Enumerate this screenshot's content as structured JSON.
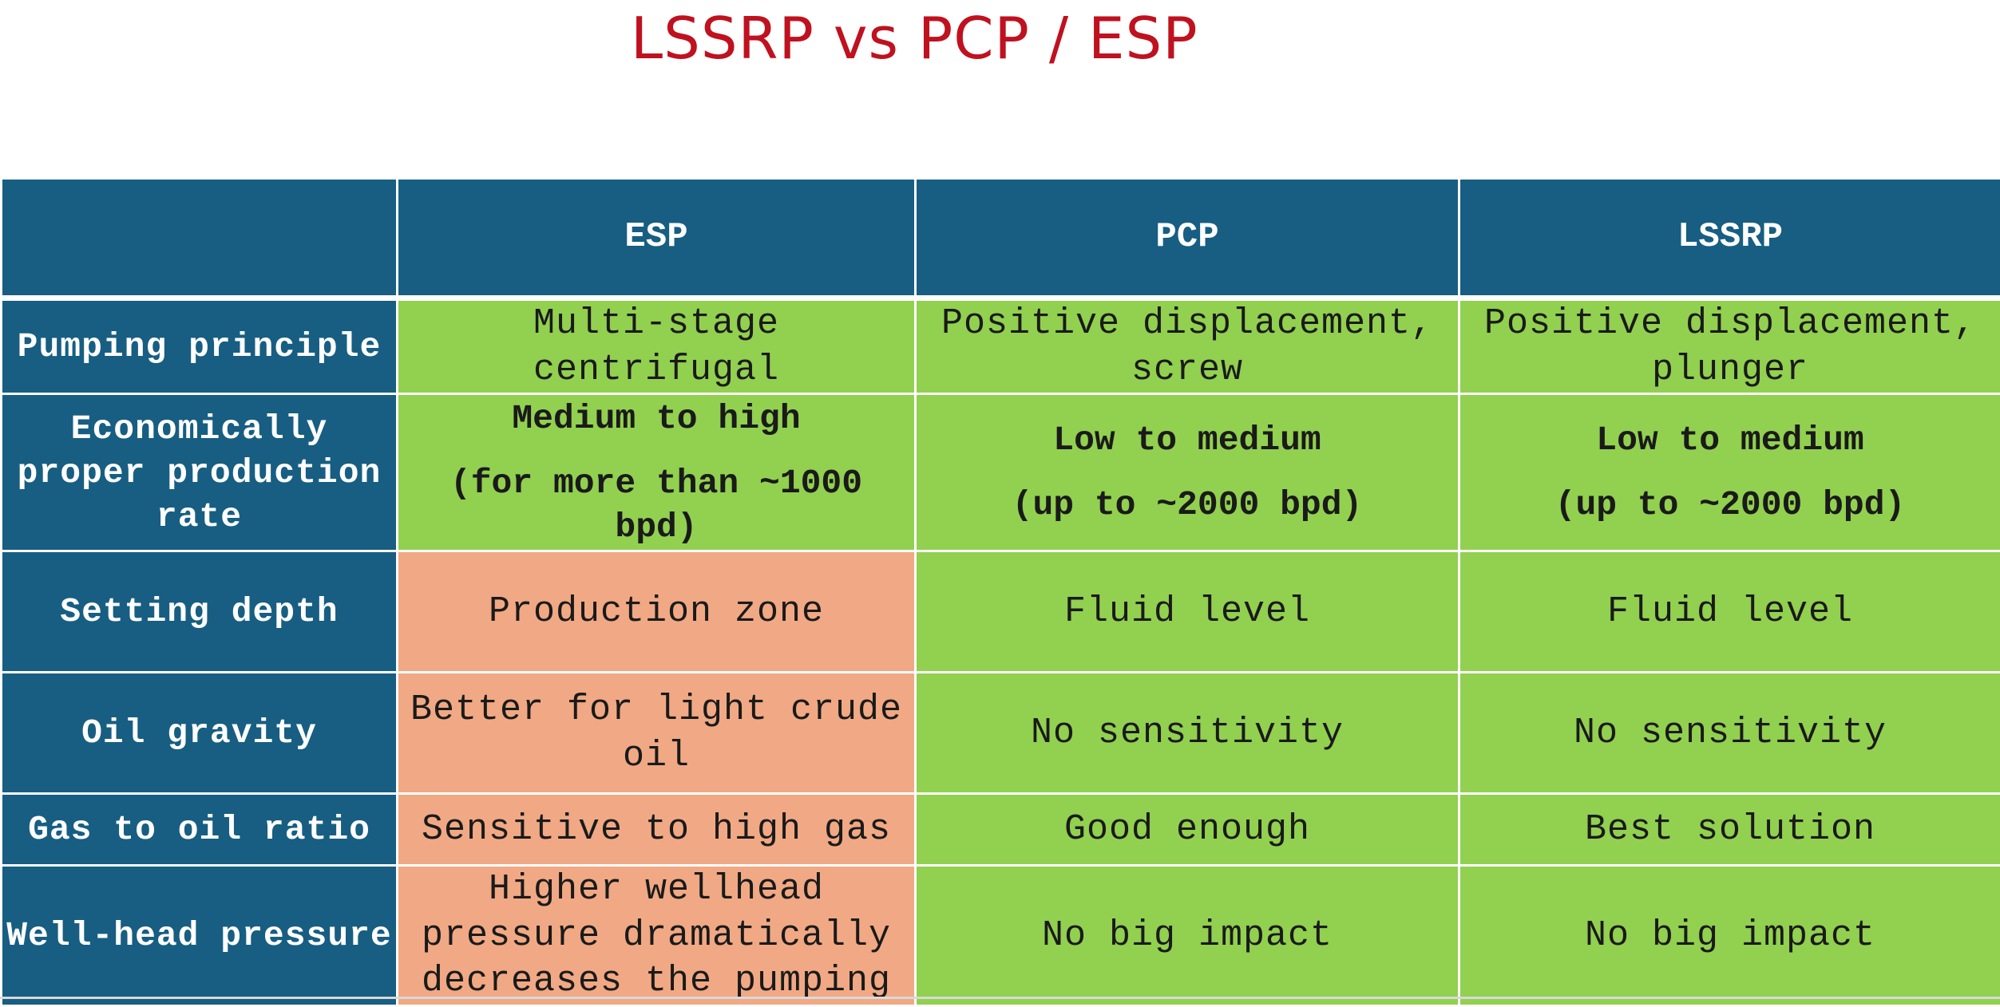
{
  "title": "LSSRP vs PCP / ESP",
  "colors": {
    "header_bg": "#175e82",
    "favorable": "#92d050",
    "unfavorable": "#f0a984",
    "title": "#c0111f"
  },
  "table": {
    "columns": [
      "",
      "ESP",
      "PCP",
      "LSSRP"
    ],
    "rows": [
      {
        "label": "Pumping principle",
        "esp": "Multi-stage centrifugal",
        "pcp": "Positive displacement, screw",
        "lssrp": "Positive displacement, plunger"
      },
      {
        "label": "Economically proper production rate",
        "esp": {
          "line1": "Medium to high",
          "line2": "(for more than ~1000 bpd)"
        },
        "pcp": {
          "line1": "Low to medium",
          "line2": "(up to ~2000 bpd)"
        },
        "lssrp": {
          "line1": "Low to medium",
          "line2": "(up to ~2000 bpd)"
        }
      },
      {
        "label": "Setting depth",
        "esp": "Production zone",
        "pcp": "Fluid level",
        "lssrp": "Fluid level"
      },
      {
        "label": "Oil gravity",
        "esp": "Better for light crude oil",
        "pcp": "No sensitivity",
        "lssrp": "No sensitivity"
      },
      {
        "label": "Gas to oil ratio",
        "esp": "Sensitive to high gas",
        "pcp": "Good enough",
        "lssrp": "Best solution"
      },
      {
        "label": "Well-head pressure",
        "esp": "Higher wellhead pressure dramatically decreases the pumping",
        "pcp": "No big impact",
        "lssrp": "No big impact"
      }
    ]
  }
}
